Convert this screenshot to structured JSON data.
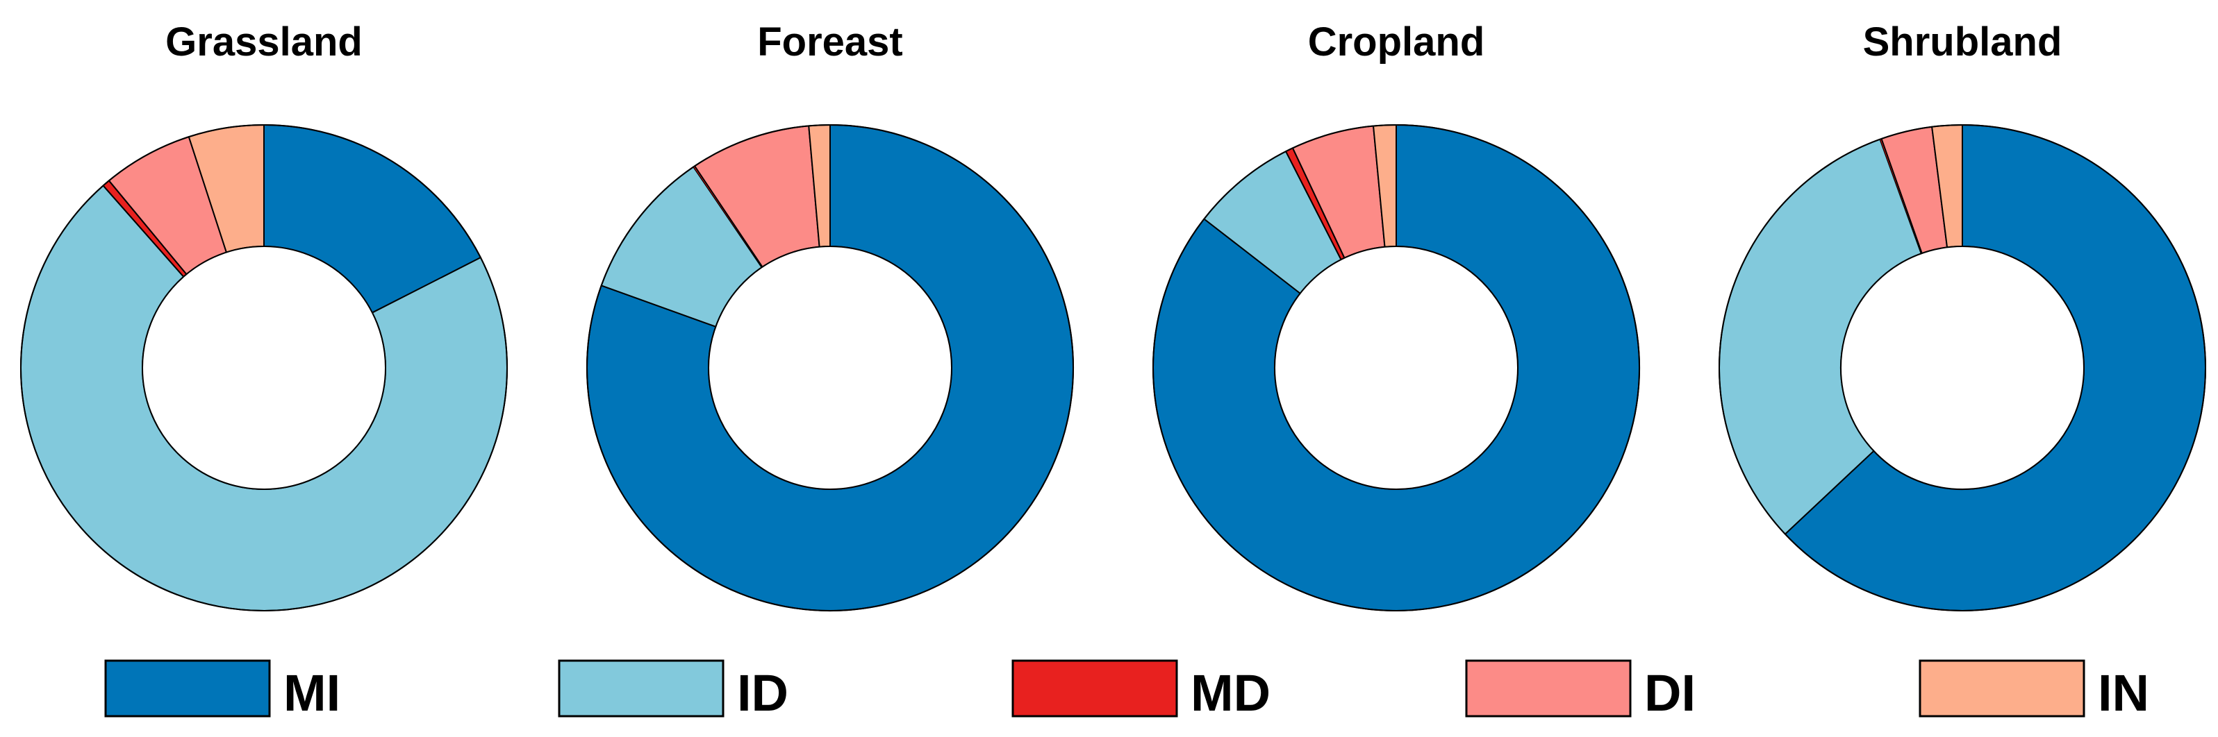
{
  "chart_data": {
    "type": "donut",
    "categories": [
      "MI",
      "ID",
      "MD",
      "DI",
      "IN"
    ],
    "colors": {
      "MI": "#0075b8",
      "ID": "#82c9dc",
      "MD": "#e8211f",
      "DI": "#fc8b87",
      "IN": "#fdae8b"
    },
    "legend": {
      "position": "bottom",
      "items": [
        {
          "key": "MI",
          "label": "MI"
        },
        {
          "key": "ID",
          "label": "ID"
        },
        {
          "key": "MD",
          "label": "MD"
        },
        {
          "key": "DI",
          "label": "DI"
        },
        {
          "key": "IN",
          "label": "IN"
        }
      ]
    },
    "charts": [
      {
        "id": "grassland",
        "title": "Grassland",
        "values": {
          "MI": 17.5,
          "ID": 71.0,
          "MD": 0.5,
          "DI": 6.0,
          "IN": 5.0
        }
      },
      {
        "id": "foreast",
        "title": "Foreast",
        "values": {
          "MI": 80.5,
          "ID": 10.0,
          "MD": 0.1,
          "DI": 8.0,
          "IN": 1.4
        }
      },
      {
        "id": "cropland",
        "title": "Cropland",
        "values": {
          "MI": 85.5,
          "ID": 7.0,
          "MD": 0.5,
          "DI": 5.5,
          "IN": 1.5
        }
      },
      {
        "id": "shrubland",
        "title": "Shrubland",
        "values": {
          "MI": 63.0,
          "ID": 31.5,
          "MD": 0.1,
          "DI": 3.4,
          "IN": 2.0
        }
      }
    ]
  }
}
